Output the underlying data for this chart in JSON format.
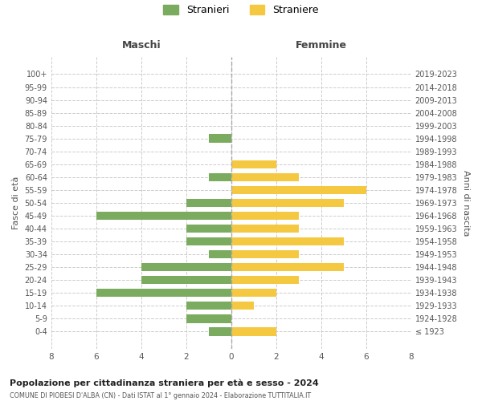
{
  "age_groups": [
    "100+",
    "95-99",
    "90-94",
    "85-89",
    "80-84",
    "75-79",
    "70-74",
    "65-69",
    "60-64",
    "55-59",
    "50-54",
    "45-49",
    "40-44",
    "35-39",
    "30-34",
    "25-29",
    "20-24",
    "15-19",
    "10-14",
    "5-9",
    "0-4"
  ],
  "birth_years": [
    "≤ 1923",
    "1924-1928",
    "1929-1933",
    "1934-1938",
    "1939-1943",
    "1944-1948",
    "1949-1953",
    "1954-1958",
    "1959-1963",
    "1964-1968",
    "1969-1973",
    "1974-1978",
    "1979-1983",
    "1984-1988",
    "1989-1993",
    "1994-1998",
    "1999-2003",
    "2004-2008",
    "2009-2013",
    "2014-2018",
    "2019-2023"
  ],
  "maschi": [
    0,
    0,
    0,
    0,
    0,
    1,
    0,
    0,
    1,
    0,
    2,
    6,
    2,
    2,
    1,
    4,
    4,
    6,
    2,
    2,
    1
  ],
  "femmine": [
    0,
    0,
    0,
    0,
    0,
    0,
    0,
    2,
    3,
    6,
    5,
    3,
    3,
    5,
    3,
    5,
    3,
    2,
    1,
    0,
    2
  ],
  "maschi_color": "#7aab5e",
  "femmine_color": "#f5c842",
  "title": "Popolazione per cittadinanza straniera per età e sesso - 2024",
  "subtitle": "COMUNE DI PIOBESI D'ALBA (CN) - Dati ISTAT al 1° gennaio 2024 - Elaborazione TUTTITALIA.IT",
  "legend_maschi": "Stranieri",
  "legend_femmine": "Straniere",
  "xlabel_maschi": "Maschi",
  "xlabel_femmine": "Femmine",
  "ylabel_left": "Fasce di età",
  "ylabel_right": "Anni di nascita",
  "xlim": 8,
  "bg_color": "#ffffff",
  "grid_color": "#cccccc"
}
